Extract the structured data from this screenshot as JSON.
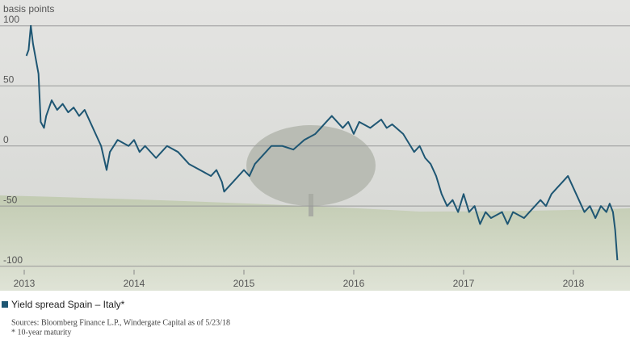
{
  "chart_data": {
    "type": "line",
    "y_axis_label": "basis points",
    "x": [
      2013.02,
      2013.04,
      2013.06,
      2013.08,
      2013.1,
      2013.13,
      2013.15,
      2013.18,
      2013.2,
      2013.25,
      2013.3,
      2013.35,
      2013.4,
      2013.45,
      2013.5,
      2013.55,
      2013.6,
      2013.65,
      2013.7,
      2013.75,
      2013.78,
      2013.85,
      2013.95,
      2014.0,
      2014.05,
      2014.1,
      2014.2,
      2014.25,
      2014.3,
      2014.4,
      2014.5,
      2014.6,
      2014.7,
      2014.75,
      2014.8,
      2014.82,
      2014.9,
      2015.0,
      2015.05,
      2015.1,
      2015.2,
      2015.25,
      2015.35,
      2015.45,
      2015.55,
      2015.65,
      2015.7,
      2015.75,
      2015.8,
      2015.9,
      2015.95,
      2016.0,
      2016.05,
      2016.15,
      2016.25,
      2016.3,
      2016.35,
      2016.45,
      2016.55,
      2016.6,
      2016.65,
      2016.7,
      2016.75,
      2016.8,
      2016.85,
      2016.9,
      2016.95,
      2017.0,
      2017.05,
      2017.1,
      2017.15,
      2017.2,
      2017.25,
      2017.35,
      2017.4,
      2017.45,
      2017.55,
      2017.6,
      2017.7,
      2017.75,
      2017.8,
      2017.85,
      2017.9,
      2017.95,
      2018.0,
      2018.05,
      2018.1,
      2018.15,
      2018.2,
      2018.25,
      2018.3,
      2018.33,
      2018.36,
      2018.38,
      2018.4
    ],
    "series": [
      {
        "name": "Yield spread Spain – Italy*",
        "color": "#1e5673",
        "values": [
          75,
          80,
          100,
          85,
          75,
          60,
          20,
          15,
          25,
          38,
          30,
          35,
          28,
          32,
          25,
          30,
          20,
          10,
          0,
          -20,
          -5,
          5,
          0,
          5,
          -5,
          0,
          -10,
          -5,
          0,
          -5,
          -15,
          -20,
          -25,
          -20,
          -30,
          -38,
          -30,
          -20,
          -25,
          -15,
          -5,
          0,
          0,
          -3,
          5,
          10,
          15,
          20,
          25,
          15,
          20,
          10,
          20,
          15,
          22,
          15,
          18,
          10,
          -5,
          0,
          -10,
          -15,
          -25,
          -40,
          -50,
          -45,
          -55,
          -40,
          -55,
          -50,
          -65,
          -55,
          -60,
          -55,
          -65,
          -55,
          -60,
          -55,
          -45,
          -50,
          -40,
          -35,
          -30,
          -25,
          -35,
          -45,
          -55,
          -50,
          -60,
          -50,
          -55,
          -48,
          -55,
          -70,
          -95
        ]
      }
    ],
    "xlim": [
      2013,
      2018.515
    ],
    "xticks": [
      2013,
      2014,
      2015,
      2016,
      2017,
      2018
    ],
    "ylim": [
      -107,
      108
    ],
    "yticks": [
      -100,
      -50,
      0,
      50,
      100
    ],
    "grid": true,
    "notes": [
      "Sources: Bloomberg Finance L.P., Windergate Capital as of 5/23/18",
      "* 10-year maturity"
    ]
  }
}
